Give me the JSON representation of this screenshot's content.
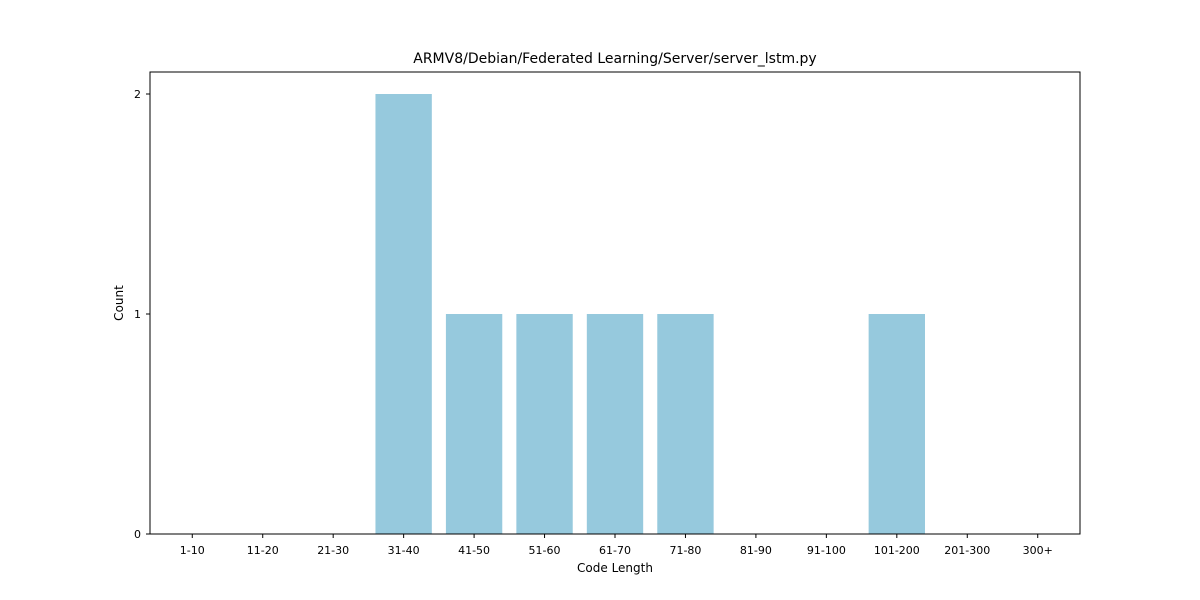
{
  "chart_data": {
    "type": "bar",
    "title": "ARMV8/Debian/Federated Learning/Server/server_lstm.py",
    "xlabel": "Code Length",
    "ylabel": "Count",
    "categories": [
      "1-10",
      "11-20",
      "21-30",
      "31-40",
      "41-50",
      "51-60",
      "61-70",
      "71-80",
      "81-90",
      "91-100",
      "101-200",
      "201-300",
      "300+"
    ],
    "values": [
      0,
      0,
      0,
      2,
      1,
      1,
      1,
      1,
      0,
      0,
      1,
      0,
      0
    ],
    "ylim": [
      0,
      2.1
    ],
    "yticks": [
      0,
      1,
      2
    ],
    "bar_color": "#96c9dd",
    "grid": false,
    "legend": "none"
  }
}
